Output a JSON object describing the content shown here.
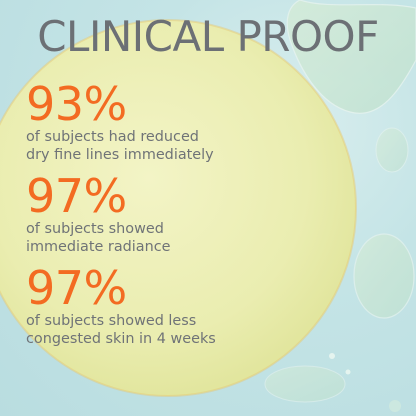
{
  "title": "CLINICAL PROOF",
  "colors": {
    "background": "#c4e4e6",
    "pad": "#eef0b8",
    "accent": "#f36b22",
    "text": "#6f7377"
  },
  "stats": [
    {
      "percent": "93%",
      "line1": "of subjects had reduced",
      "line2": "dry fine lines immediately"
    },
    {
      "percent": "97%",
      "line1": "of subjects showed",
      "line2": "immediate radiance"
    },
    {
      "percent": "97%",
      "line1": "of subjects showed less",
      "line2": "congested skin in 4 weeks"
    }
  ]
}
